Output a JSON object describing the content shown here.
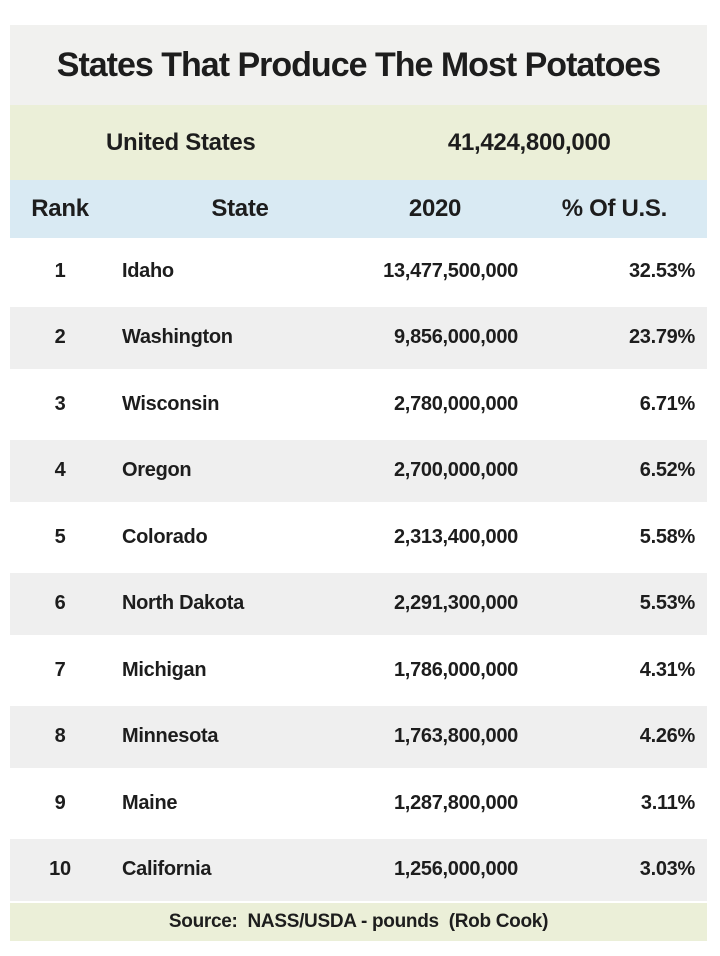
{
  "chart_data": {
    "type": "table",
    "title": "States That Produce The Most Potatoes",
    "summary_row": {
      "label": "United States",
      "value_2020": "41,424,800,000"
    },
    "columns": [
      "Rank",
      "State",
      "2020",
      "% Of U.S."
    ],
    "rows": [
      {
        "rank": "1",
        "state": "Idaho",
        "pounds_2020": "13,477,500,000",
        "pct_of_us": "32.53%"
      },
      {
        "rank": "2",
        "state": "Washington",
        "pounds_2020": "9,856,000,000",
        "pct_of_us": "23.79%"
      },
      {
        "rank": "3",
        "state": "Wisconsin",
        "pounds_2020": "2,780,000,000",
        "pct_of_us": "6.71%"
      },
      {
        "rank": "4",
        "state": "Oregon",
        "pounds_2020": "2,700,000,000",
        "pct_of_us": "6.52%"
      },
      {
        "rank": "5",
        "state": "Colorado",
        "pounds_2020": "2,313,400,000",
        "pct_of_us": "5.58%"
      },
      {
        "rank": "6",
        "state": "North Dakota",
        "pounds_2020": "2,291,300,000",
        "pct_of_us": "5.53%"
      },
      {
        "rank": "7",
        "state": "Michigan",
        "pounds_2020": "1,786,000,000",
        "pct_of_us": "4.31%"
      },
      {
        "rank": "8",
        "state": "Minnesota",
        "pounds_2020": "1,763,800,000",
        "pct_of_us": "4.26%"
      },
      {
        "rank": "9",
        "state": "Maine",
        "pounds_2020": "1,287,800,000",
        "pct_of_us": "3.11%"
      },
      {
        "rank": "10",
        "state": "California",
        "pounds_2020": "1,256,000,000",
        "pct_of_us": "3.03%"
      }
    ],
    "source": "Source:  NASS/USDA - pounds  (Rob Cook)"
  },
  "colors": {
    "title_band": "#f1f1ef",
    "summary_band": "#ebefd8",
    "header_band": "#d9eaf3",
    "row_alt": "#efefef",
    "row_default": "#ffffff",
    "text": "#1d1d1d",
    "page_background": "#ffffff"
  }
}
